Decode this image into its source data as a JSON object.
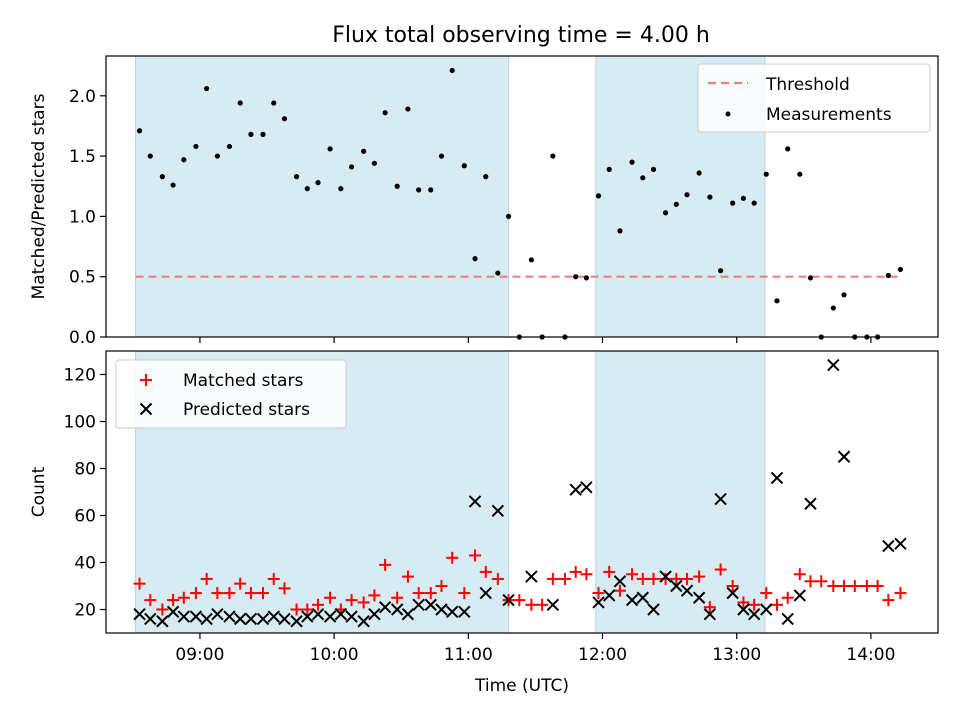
{
  "chart_data": {
    "title": "Flux total observing time = 4.00 h",
    "xlabel": "Time (UTC)",
    "x_unit": "hours UTC",
    "xlim": [
      8.3,
      14.5
    ],
    "xticks": [
      {
        "value": 9,
        "label": "09:00"
      },
      {
        "value": 10,
        "label": "10:00"
      },
      {
        "value": 11,
        "label": "11:00"
      },
      {
        "value": 12,
        "label": "12:00"
      },
      {
        "value": 13,
        "label": "13:00"
      },
      {
        "value": 14,
        "label": "14:00"
      }
    ],
    "shaded_intervals": [
      [
        8.52,
        11.3
      ],
      [
        11.95,
        13.21
      ]
    ],
    "shade_color": "#add8e6",
    "panels": [
      {
        "type": "scatter",
        "ylabel": "Matched/Predicted stars",
        "ylim": [
          0,
          2.33
        ],
        "yticks": [
          0.0,
          0.5,
          1.0,
          1.5,
          2.0
        ],
        "ytick_labels": [
          "0.0",
          "0.5",
          "1.0",
          "1.5",
          "2.0"
        ],
        "legend_position": "upper right",
        "threshold": {
          "name": "Threshold",
          "y": 0.5,
          "x_range": [
            8.52,
            14.23
          ],
          "color": "#f08080",
          "style": "dashed"
        },
        "series": [
          {
            "name": "Measurements",
            "marker": "dot",
            "color": "#000000",
            "x": [
              8.55,
              8.63,
              8.72,
              8.8,
              8.88,
              8.97,
              9.05,
              9.13,
              9.22,
              9.3,
              9.38,
              9.47,
              9.55,
              9.63,
              9.72,
              9.8,
              9.88,
              9.97,
              10.05,
              10.13,
              10.22,
              10.3,
              10.38,
              10.47,
              10.55,
              10.63,
              10.72,
              10.8,
              10.88,
              10.97,
              11.05,
              11.13,
              11.22,
              11.3,
              11.38,
              11.47,
              11.55,
              11.63,
              11.72,
              11.8,
              11.88,
              11.97,
              12.05,
              12.13,
              12.22,
              12.3,
              12.38,
              12.47,
              12.55,
              12.63,
              12.72,
              12.8,
              12.88,
              12.97,
              13.05,
              13.13,
              13.22,
              13.3,
              13.38,
              13.47,
              13.55,
              13.63,
              13.72,
              13.8,
              13.88,
              13.97,
              14.05,
              14.13,
              14.22
            ],
            "y": [
              1.71,
              1.5,
              1.33,
              1.26,
              1.47,
              1.58,
              2.06,
              1.5,
              1.58,
              1.94,
              1.68,
              1.68,
              1.94,
              1.81,
              1.33,
              1.23,
              1.28,
              1.56,
              1.23,
              1.41,
              1.54,
              1.44,
              1.86,
              1.25,
              1.89,
              1.22,
              1.22,
              1.5,
              2.21,
              1.42,
              0.65,
              1.33,
              0.53,
              1.0,
              0.0,
              0.64,
              0.0,
              1.5,
              0.0,
              0.5,
              0.49,
              1.17,
              1.39,
              0.88,
              1.45,
              1.32,
              1.39,
              1.03,
              1.1,
              1.18,
              1.36,
              1.16,
              0.55,
              1.11,
              1.15,
              1.11,
              1.35,
              0.3,
              1.56,
              1.35,
              0.49,
              0.0,
              0.24,
              0.35,
              0.0,
              0.0,
              0.0,
              0.51,
              0.56
            ]
          }
        ]
      },
      {
        "type": "scatter",
        "ylabel": "Count",
        "ylim": [
          10,
          130
        ],
        "yticks": [
          20,
          40,
          60,
          80,
          100,
          120
        ],
        "ytick_labels": [
          "20",
          "40",
          "60",
          "80",
          "100",
          "120"
        ],
        "legend_position": "upper left",
        "series": [
          {
            "name": "Matched stars",
            "marker": "plus",
            "color": "#ff0000",
            "x": [
              8.55,
              8.63,
              8.72,
              8.8,
              8.88,
              8.97,
              9.05,
              9.13,
              9.22,
              9.3,
              9.38,
              9.47,
              9.55,
              9.63,
              9.72,
              9.8,
              9.88,
              9.97,
              10.05,
              10.13,
              10.22,
              10.3,
              10.38,
              10.47,
              10.55,
              10.63,
              10.72,
              10.8,
              10.88,
              10.97,
              11.05,
              11.13,
              11.22,
              11.3,
              11.38,
              11.47,
              11.55,
              11.63,
              11.72,
              11.8,
              11.88,
              11.97,
              12.05,
              12.13,
              12.22,
              12.3,
              12.38,
              12.47,
              12.55,
              12.63,
              12.72,
              12.8,
              12.88,
              12.97,
              13.05,
              13.13,
              13.22,
              13.3,
              13.38,
              13.47,
              13.55,
              13.63,
              13.72,
              13.8,
              13.88,
              13.97,
              14.05,
              14.13,
              14.22
            ],
            "y": [
              31,
              24,
              20,
              24,
              25,
              27,
              33,
              27,
              27,
              31,
              27,
              27,
              33,
              29,
              20,
              20,
              22,
              25,
              20,
              24,
              23,
              26,
              39,
              25,
              34,
              27,
              27,
              30,
              42,
              27,
              43,
              36,
              33,
              24,
              24,
              22,
              22,
              33,
              33,
              36,
              35,
              27,
              36,
              28,
              35,
              33,
              33,
              33,
              33,
              33,
              34,
              21,
              37,
              30,
              23,
              22,
              27,
              22,
              25,
              35,
              32,
              32,
              30,
              30,
              30,
              30,
              30,
              24,
              27
            ]
          },
          {
            "name": "Predicted stars",
            "marker": "x",
            "color": "#000000",
            "x": [
              8.55,
              8.63,
              8.72,
              8.8,
              8.88,
              8.97,
              9.05,
              9.13,
              9.22,
              9.3,
              9.38,
              9.47,
              9.55,
              9.63,
              9.72,
              9.8,
              9.88,
              9.97,
              10.05,
              10.13,
              10.22,
              10.3,
              10.38,
              10.47,
              10.55,
              10.63,
              10.72,
              10.8,
              10.88,
              10.97,
              11.05,
              11.13,
              11.22,
              11.3,
              11.47,
              11.63,
              11.8,
              11.88,
              11.97,
              12.05,
              12.13,
              12.22,
              12.3,
              12.38,
              12.47,
              12.55,
              12.63,
              12.72,
              12.8,
              12.88,
              12.97,
              13.05,
              13.13,
              13.22,
              13.3,
              13.38,
              13.47,
              13.55,
              13.72,
              13.8,
              14.13,
              14.22
            ],
            "y": [
              18,
              16,
              15,
              19,
              17,
              17,
              16,
              18,
              17,
              16,
              16,
              16,
              17,
              16,
              15,
              17,
              18,
              17,
              18,
              17,
              15,
              18,
              21,
              20,
              18,
              22,
              22,
              20,
              19,
              19,
              66,
              27,
              62,
              24,
              34,
              22,
              71,
              72,
              23,
              26,
              32,
              24,
              25,
              20,
              34,
              30,
              28,
              25,
              18,
              67,
              27,
              20,
              18,
              20,
              76,
              16,
              26,
              65,
              124,
              85,
              47,
              48
            ]
          }
        ]
      }
    ]
  }
}
